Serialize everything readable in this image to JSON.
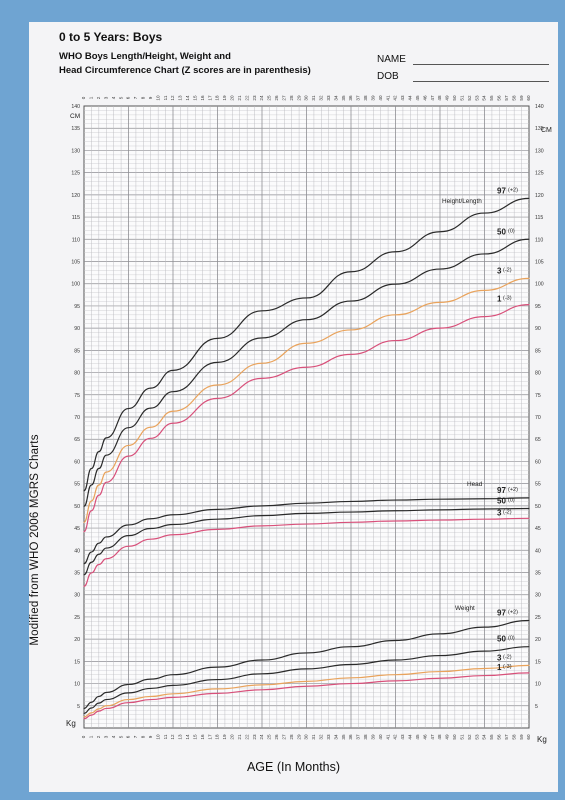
{
  "header": {
    "title": "0 to 5 Years: Boys",
    "subtitle_line1": "WHO Boys Length/Height, Weight and",
    "subtitle_line2": "Head Circumference Chart (Z scores are in parenthesis)",
    "name_label": "NAME",
    "dob_label": "DOB"
  },
  "side_label": "Modified from WHO 2006 MGRS Charts",
  "colors": {
    "paper": "#f4f4f6",
    "border": "#6fa4d2",
    "grid": "#a9a9ad",
    "black_curve": "#2a2a2a",
    "orange_curve": "#e9a35c",
    "pink_curve": "#d8507a"
  },
  "chart_data": {
    "type": "line",
    "title": "0 to 5 Years: Boys",
    "xlabel": "AGE (In Months)",
    "ylabel_left": "CM",
    "ylabel_left_bottom": "Kg",
    "ylabel_right": "CM",
    "ylabel_right_bottom": "Kg",
    "xlim": [
      0,
      60
    ],
    "ylim": [
      0,
      140
    ],
    "grid": true,
    "x_ticks": [
      0,
      1,
      2,
      3,
      4,
      5,
      6,
      7,
      8,
      9,
      10,
      11,
      12,
      13,
      14,
      15,
      16,
      17,
      18,
      19,
      20,
      21,
      22,
      23,
      24,
      25,
      26,
      27,
      28,
      29,
      30,
      31,
      32,
      33,
      34,
      35,
      36,
      37,
      38,
      39,
      40,
      41,
      42,
      43,
      44,
      45,
      46,
      47,
      48,
      49,
      50,
      51,
      52,
      53,
      54,
      55,
      56,
      57,
      58,
      59,
      60
    ],
    "y_ticks_left": [
      5,
      10,
      15,
      20,
      25,
      30,
      35,
      40,
      45,
      50,
      55,
      60,
      65,
      70,
      75,
      80,
      85,
      90,
      95,
      100,
      105,
      110,
      115,
      120,
      125,
      130,
      135,
      140
    ],
    "y_ticks_right": [
      5,
      10,
      15,
      20,
      25,
      30,
      35,
      40,
      45,
      50,
      55,
      60,
      65,
      70,
      75,
      80,
      85,
      90,
      95,
      100,
      105,
      110,
      115,
      120,
      125,
      130,
      135,
      140
    ],
    "groups": [
      {
        "label": "Height/Length",
        "series": [
          {
            "name": "97",
            "z": "(+2)",
            "color": "black",
            "points": [
              [
                0,
                53.4
              ],
              [
                1,
                58.4
              ],
              [
                2,
                62.2
              ],
              [
                3,
                65.3
              ],
              [
                6,
                71.9
              ],
              [
                9,
                76.5
              ],
              [
                12,
                80.5
              ],
              [
                18,
                87.7
              ],
              [
                24,
                93.9
              ],
              [
                30,
                96.8
              ],
              [
                36,
                102.7
              ],
              [
                42,
                107.2
              ],
              [
                48,
                111.7
              ],
              [
                54,
                115.9
              ],
              [
                60,
                119.2
              ]
            ]
          },
          {
            "name": "50",
            "z": "(0)",
            "color": "black",
            "points": [
              [
                0,
                49.9
              ],
              [
                1,
                54.7
              ],
              [
                2,
                58.4
              ],
              [
                3,
                61.4
              ],
              [
                6,
                67.6
              ],
              [
                9,
                72.0
              ],
              [
                12,
                75.7
              ],
              [
                18,
                82.3
              ],
              [
                24,
                87.8
              ],
              [
                30,
                91.9
              ],
              [
                36,
                96.1
              ],
              [
                42,
                99.9
              ],
              [
                48,
                103.3
              ],
              [
                54,
                106.7
              ],
              [
                60,
                110.0
              ]
            ]
          },
          {
            "name": "3",
            "z": "(-2)",
            "color": "orange",
            "points": [
              [
                0,
                46.3
              ],
              [
                1,
                51.1
              ],
              [
                2,
                54.7
              ],
              [
                3,
                57.6
              ],
              [
                6,
                63.6
              ],
              [
                9,
                67.7
              ],
              [
                12,
                71.3
              ],
              [
                18,
                77.2
              ],
              [
                24,
                82.1
              ],
              [
                30,
                86.6
              ],
              [
                36,
                89.6
              ],
              [
                42,
                93.0
              ],
              [
                48,
                95.8
              ],
              [
                54,
                98.5
              ],
              [
                60,
                101.2
              ]
            ]
          },
          {
            "name": "1",
            "z": "(-3)",
            "color": "pink",
            "points": [
              [
                0,
                44.2
              ],
              [
                1,
                48.9
              ],
              [
                2,
                52.4
              ],
              [
                3,
                55.3
              ],
              [
                6,
                61.2
              ],
              [
                9,
                65.2
              ],
              [
                12,
                68.6
              ],
              [
                18,
                74.2
              ],
              [
                24,
                78.7
              ],
              [
                30,
                81.2
              ],
              [
                36,
                84.1
              ],
              [
                42,
                87.2
              ],
              [
                48,
                90.0
              ],
              [
                54,
                92.6
              ],
              [
                60,
                95.3
              ]
            ]
          }
        ]
      },
      {
        "label": "Head",
        "series": [
          {
            "name": "97",
            "z": "(+2)",
            "color": "black",
            "points": [
              [
                0,
                37.0
              ],
              [
                1,
                39.6
              ],
              [
                2,
                41.6
              ],
              [
                3,
                43.0
              ],
              [
                6,
                45.7
              ],
              [
                9,
                47.1
              ],
              [
                12,
                48.0
              ],
              [
                18,
                49.2
              ],
              [
                24,
                50.0
              ],
              [
                30,
                50.6
              ],
              [
                36,
                51.0
              ],
              [
                42,
                51.3
              ],
              [
                48,
                51.5
              ],
              [
                54,
                51.6
              ],
              [
                60,
                51.8
              ]
            ]
          },
          {
            "name": "50",
            "z": "(0)",
            "color": "black",
            "points": [
              [
                0,
                34.5
              ],
              [
                1,
                37.3
              ],
              [
                2,
                39.1
              ],
              [
                3,
                40.5
              ],
              [
                6,
                43.3
              ],
              [
                9,
                44.9
              ],
              [
                12,
                45.8
              ],
              [
                18,
                47.0
              ],
              [
                24,
                47.8
              ],
              [
                30,
                48.3
              ],
              [
                36,
                48.6
              ],
              [
                42,
                48.9
              ],
              [
                48,
                49.1
              ],
              [
                54,
                49.3
              ],
              [
                60,
                49.4
              ]
            ]
          },
          {
            "name": "3",
            "z": "(-2)",
            "color": "pink",
            "points": [
              [
                0,
                31.9
              ],
              [
                1,
                34.9
              ],
              [
                2,
                36.8
              ],
              [
                3,
                38.1
              ],
              [
                6,
                40.9
              ],
              [
                9,
                42.5
              ],
              [
                12,
                43.5
              ],
              [
                18,
                44.7
              ],
              [
                24,
                45.5
              ],
              [
                30,
                45.9
              ],
              [
                36,
                46.3
              ],
              [
                42,
                46.6
              ],
              [
                48,
                46.8
              ],
              [
                54,
                47.0
              ],
              [
                60,
                47.2
              ]
            ]
          }
        ]
      },
      {
        "label": "Weight",
        "series": [
          {
            "name": "97",
            "z": "(+2)",
            "color": "black",
            "points": [
              [
                0,
                4.4
              ],
              [
                1,
                5.8
              ],
              [
                2,
                7.1
              ],
              [
                3,
                8.0
              ],
              [
                6,
                9.8
              ],
              [
                9,
                11.0
              ],
              [
                12,
                12.0
              ],
              [
                18,
                13.7
              ],
              [
                24,
                15.3
              ],
              [
                30,
                16.9
              ],
              [
                36,
                18.3
              ],
              [
                42,
                19.7
              ],
              [
                48,
                21.2
              ],
              [
                54,
                22.7
              ],
              [
                60,
                24.2
              ]
            ]
          },
          {
            "name": "50",
            "z": "(0)",
            "color": "black",
            "points": [
              [
                0,
                3.3
              ],
              [
                1,
                4.5
              ],
              [
                2,
                5.6
              ],
              [
                3,
                6.4
              ],
              [
                6,
                7.9
              ],
              [
                9,
                8.9
              ],
              [
                12,
                9.6
              ],
              [
                18,
                10.9
              ],
              [
                24,
                12.2
              ],
              [
                30,
                13.3
              ],
              [
                36,
                14.3
              ],
              [
                42,
                15.3
              ],
              [
                48,
                16.3
              ],
              [
                54,
                17.3
              ],
              [
                60,
                18.3
              ]
            ]
          },
          {
            "name": "3",
            "z": "(-2)",
            "color": "orange",
            "points": [
              [
                0,
                2.5
              ],
              [
                1,
                3.4
              ],
              [
                2,
                4.3
              ],
              [
                3,
                5.0
              ],
              [
                6,
                6.4
              ],
              [
                9,
                7.1
              ],
              [
                12,
                7.7
              ],
              [
                18,
                8.8
              ],
              [
                24,
                9.7
              ],
              [
                30,
                10.5
              ],
              [
                36,
                11.3
              ],
              [
                42,
                12.0
              ],
              [
                48,
                12.7
              ],
              [
                54,
                13.4
              ],
              [
                60,
                14.1
              ]
            ]
          },
          {
            "name": "1",
            "z": "(-3)",
            "color": "pink",
            "points": [
              [
                0,
                2.1
              ],
              [
                1,
                2.9
              ],
              [
                2,
                3.8
              ],
              [
                3,
                4.4
              ],
              [
                6,
                5.7
              ],
              [
                9,
                6.4
              ],
              [
                12,
                6.9
              ],
              [
                18,
                7.8
              ],
              [
                24,
                8.6
              ],
              [
                30,
                9.4
              ],
              [
                36,
                10.0
              ],
              [
                42,
                10.6
              ],
              [
                48,
                11.2
              ],
              [
                54,
                11.8
              ],
              [
                60,
                12.4
              ]
            ]
          }
        ]
      }
    ]
  }
}
